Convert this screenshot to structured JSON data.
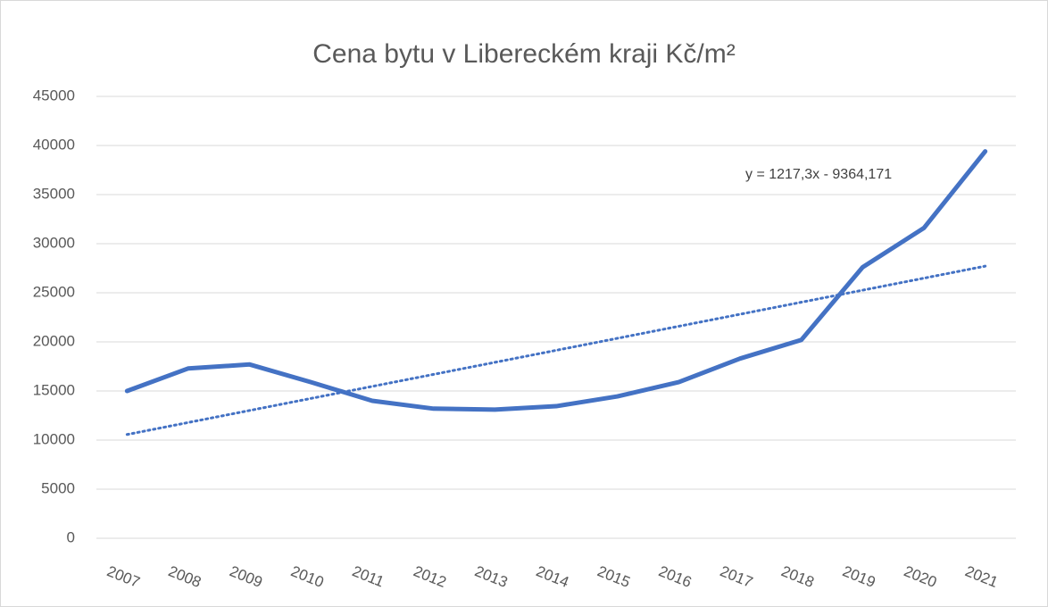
{
  "chart_data": {
    "type": "line",
    "title": "Cena bytu v Libereckém kraji Kč/m²",
    "categories": [
      "2007",
      "2008",
      "2009",
      "2010",
      "2011",
      "2012",
      "2013",
      "2014",
      "2015",
      "2016",
      "2017",
      "2018",
      "2019",
      "2020",
      "2021"
    ],
    "series": [
      {
        "name": "Cena",
        "color": "#4472c4",
        "values": [
          15000,
          17300,
          17700,
          15900,
          14000,
          13200,
          13100,
          13450,
          14450,
          15900,
          18300,
          20200,
          27600,
          31600,
          39400
        ]
      }
    ],
    "trendline": {
      "color": "#4472c4",
      "style": "dotted",
      "annotation": "y = 1217,3x - 9364,171"
    },
    "ylim": [
      0,
      45000
    ],
    "yticks": [
      0,
      5000,
      10000,
      15000,
      20000,
      25000,
      30000,
      35000,
      40000,
      45000
    ],
    "grid": true
  }
}
